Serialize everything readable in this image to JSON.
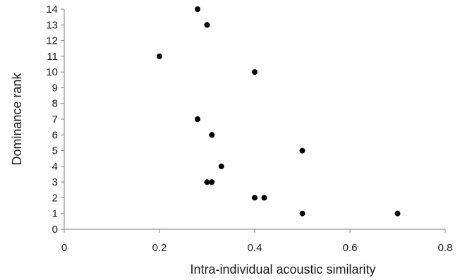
{
  "chart_data": {
    "type": "scatter",
    "xlabel": "Intra-individual acoustic similarity",
    "ylabel": "Dominance rank",
    "xlim": [
      0,
      0.8
    ],
    "ylim": [
      0,
      14
    ],
    "x_ticks": [
      0,
      0.2,
      0.4,
      0.6,
      0.8
    ],
    "x_tick_labels": [
      "0",
      "0.2",
      "0.4",
      "0.6",
      "0.8"
    ],
    "y_ticks": [
      0,
      1,
      2,
      3,
      4,
      5,
      6,
      7,
      8,
      9,
      10,
      11,
      12,
      13,
      14
    ],
    "y_tick_labels": [
      "0",
      "1",
      "2",
      "3",
      "4",
      "5",
      "6",
      "7",
      "8",
      "9",
      "10",
      "11",
      "12",
      "13",
      "14"
    ],
    "grid": false,
    "legend": "none",
    "marker_color": "#000000",
    "points": [
      {
        "x": 0.28,
        "y": 14
      },
      {
        "x": 0.3,
        "y": 13
      },
      {
        "x": 0.2,
        "y": 11
      },
      {
        "x": 0.4,
        "y": 10
      },
      {
        "x": 0.28,
        "y": 7
      },
      {
        "x": 0.31,
        "y": 6
      },
      {
        "x": 0.5,
        "y": 5
      },
      {
        "x": 0.33,
        "y": 4
      },
      {
        "x": 0.3,
        "y": 3
      },
      {
        "x": 0.31,
        "y": 3
      },
      {
        "x": 0.4,
        "y": 2
      },
      {
        "x": 0.42,
        "y": 2
      },
      {
        "x": 0.5,
        "y": 1
      },
      {
        "x": 0.7,
        "y": 1
      }
    ]
  }
}
